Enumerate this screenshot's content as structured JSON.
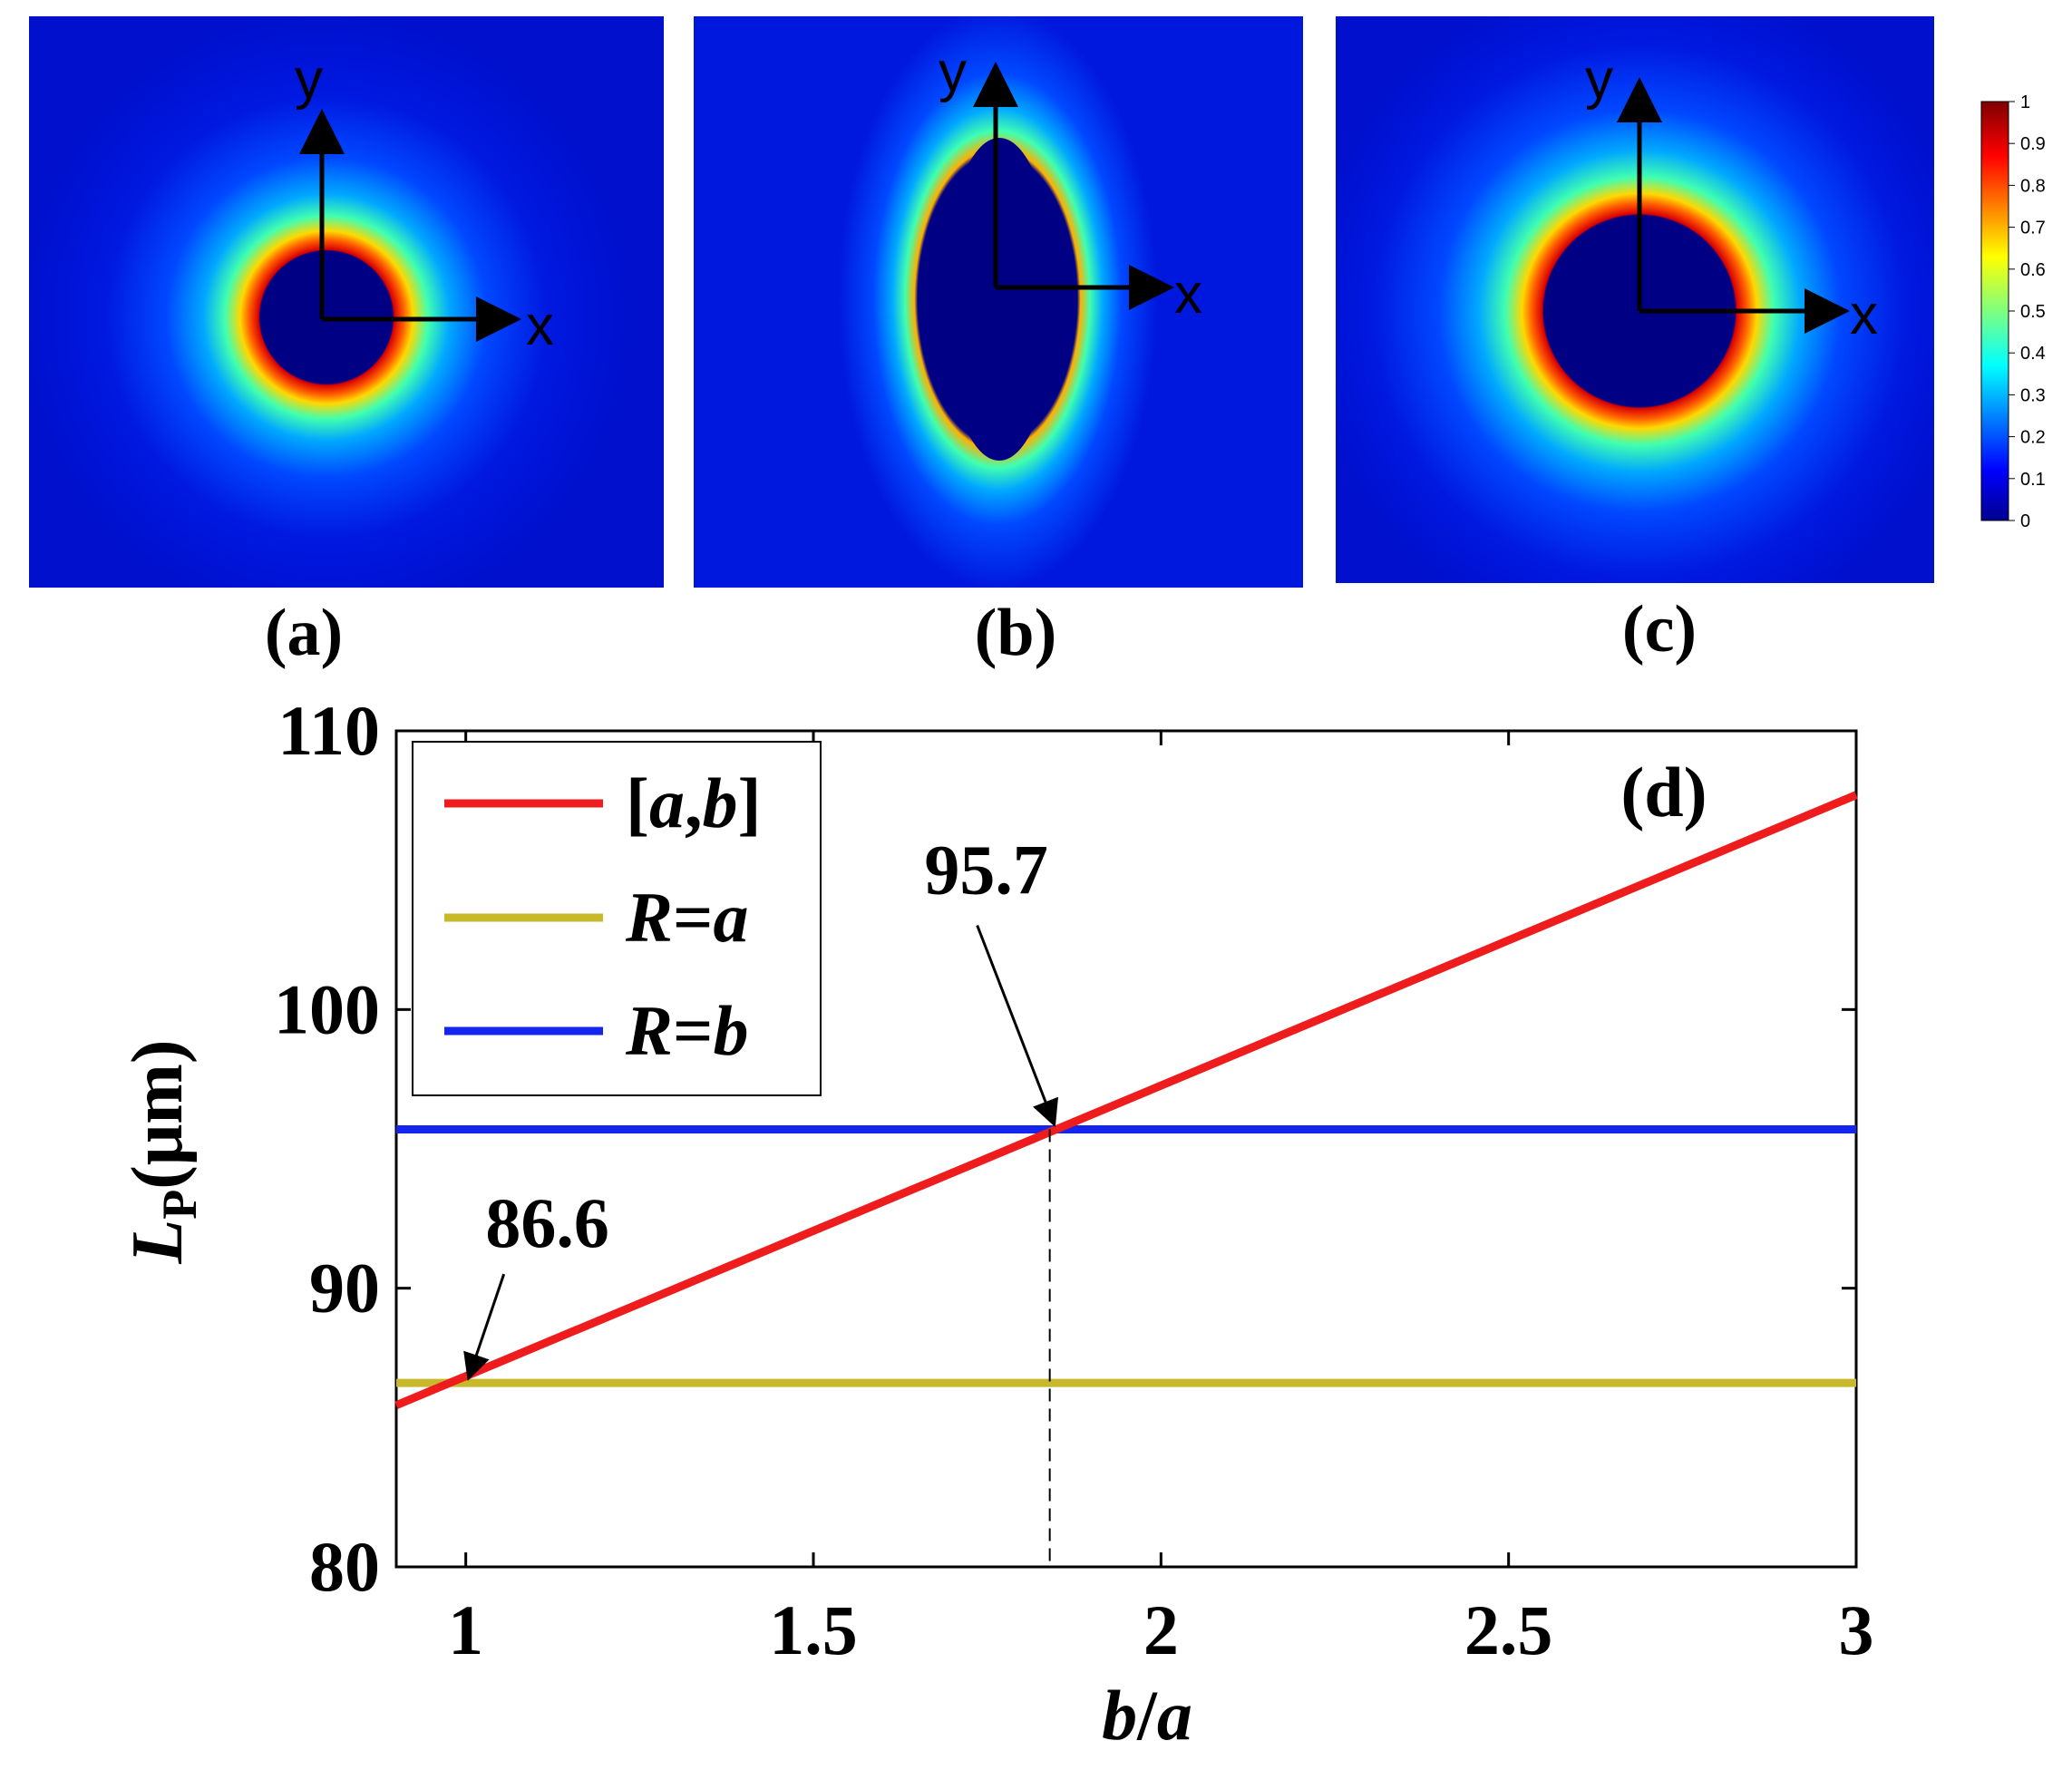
{
  "panels": {
    "a": {
      "label": "(a)",
      "axis_x": "x",
      "axis_y": "y",
      "shape": "circle-small"
    },
    "b": {
      "label": "(b)",
      "axis_x": "x",
      "axis_y": "y",
      "shape": "ellipse-vertical"
    },
    "c": {
      "label": "(c)",
      "axis_x": "x",
      "axis_y": "y",
      "shape": "circle-large"
    }
  },
  "colorbar": {
    "ticks": [
      "1",
      "0.9",
      "0.8",
      "0.7",
      "0.6",
      "0.5",
      "0.4",
      "0.3",
      "0.2",
      "0.1",
      "0"
    ],
    "colormap": "jet",
    "range": [
      0,
      1
    ]
  },
  "chart_data": {
    "type": "line",
    "panel_label": "(d)",
    "xlabel_b": "b",
    "xlabel_sep": "/",
    "xlabel_a": "a",
    "ylabel_main": "L",
    "ylabel_sub": "P",
    "ylabel_unit": "(μm)",
    "xlim": [
      0.9,
      3
    ],
    "ylim": [
      80,
      110
    ],
    "xticks": [
      1,
      1.5,
      2,
      2.5,
      3
    ],
    "xtick_labels": [
      "1",
      "1.5",
      "2",
      "2.5",
      "3"
    ],
    "yticks": [
      80,
      90,
      100,
      110
    ],
    "ytick_labels": [
      "80",
      "90",
      "100",
      "110"
    ],
    "legend_position": "top-left",
    "series": [
      {
        "name": "[a,b]",
        "legend_main": "a",
        "legend_b": "b",
        "color": "#ee1c1c",
        "x": [
          0.9,
          3.0
        ],
        "y": [
          85.8,
          107.7
        ]
      },
      {
        "name": "R=a",
        "legend_prefix": "R",
        "legend_eq": "=",
        "legend_var": "a",
        "color": "#c8b92a",
        "x": [
          0.9,
          3.0
        ],
        "y": [
          86.6,
          86.6
        ]
      },
      {
        "name": "R=b",
        "legend_prefix": "R",
        "legend_eq": "=",
        "legend_var": "b",
        "color": "#1426ee",
        "x": [
          0.9,
          3.0
        ],
        "y": [
          95.7,
          95.7
        ]
      }
    ],
    "annotations": [
      {
        "text": "86.6",
        "x": 1.0,
        "y": 86.6
      },
      {
        "text": "95.7",
        "x": 1.84,
        "y": 95.7
      }
    ],
    "vline_x": 1.84
  }
}
